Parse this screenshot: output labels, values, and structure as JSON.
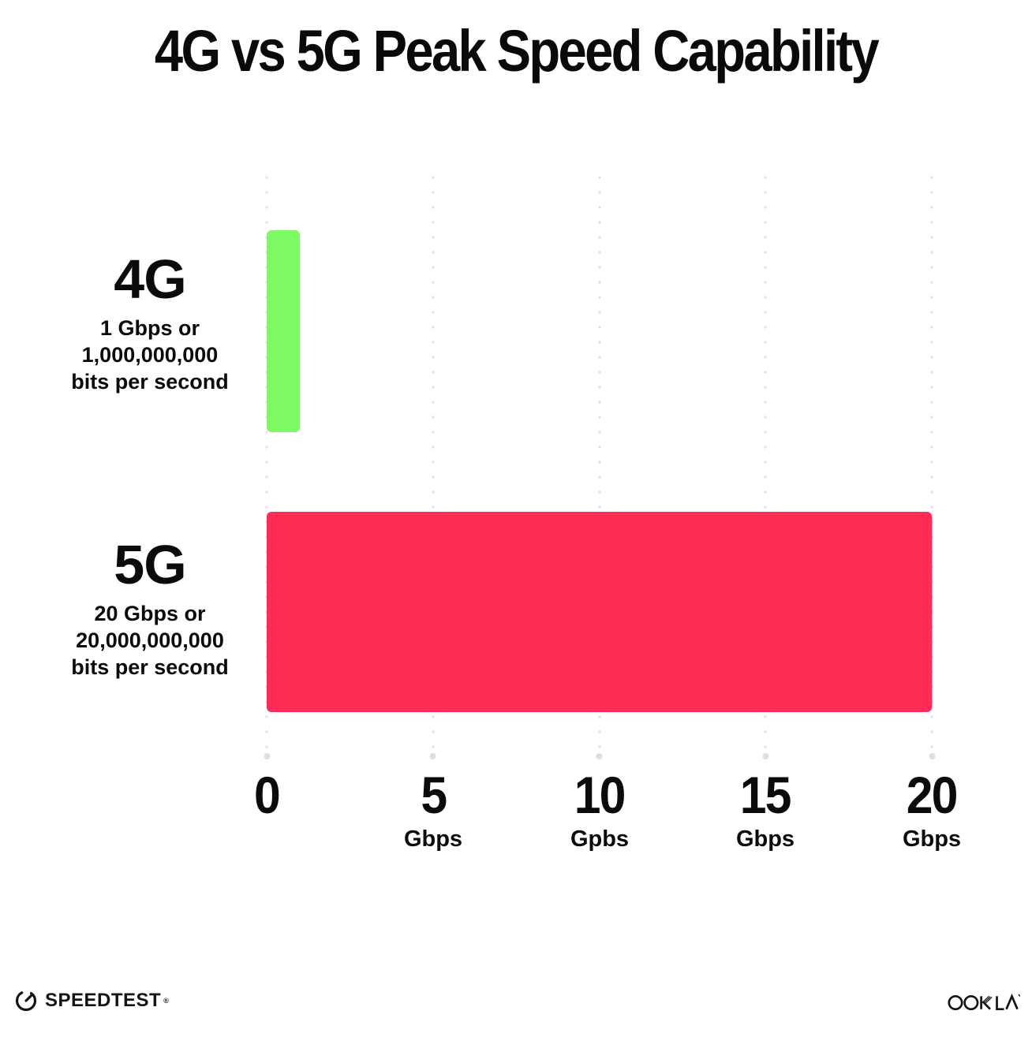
{
  "title": "4G vs 5G Peak Speed Capability",
  "chart_data": {
    "type": "bar",
    "orientation": "horizontal",
    "title": "4G vs 5G Peak Speed Capability",
    "categories": [
      "4G",
      "5G"
    ],
    "values": [
      1,
      20
    ],
    "value_unit": "Gbps",
    "xlim": [
      0,
      20
    ],
    "x_tick_values": [
      0,
      5,
      10,
      15,
      20
    ],
    "grid": "vertical dotted gridlines",
    "legend": "none",
    "rows": [
      {
        "label": "4G",
        "value": 1,
        "color": "#7DFA63",
        "sublabel_lines": [
          "1 Gbps or",
          "1,000,000,000",
          "bits per second"
        ]
      },
      {
        "label": "5G",
        "value": 20,
        "color": "#FF2D55",
        "sublabel_lines": [
          "20 Gbps or",
          "20,000,000,000",
          "bits per second"
        ]
      }
    ],
    "x_ticks": [
      {
        "value": "0",
        "unit": ""
      },
      {
        "value": "5",
        "unit": "Gbps"
      },
      {
        "value": "10",
        "unit": "Gpbs"
      },
      {
        "value": "15",
        "unit": "Gbps"
      },
      {
        "value": "20",
        "unit": "Gbps"
      }
    ]
  },
  "colors": {
    "bar_4g": "#7DFA63",
    "bar_5g": "#FF2D55",
    "grid_dot": "#DFE3EE",
    "text": "#0B0B0B",
    "background": "#FFFFFF"
  },
  "footer": {
    "speedtest_label": "SPEEDTEST",
    "speedtest_mark": "®",
    "ookla_label": "OOKLA"
  }
}
